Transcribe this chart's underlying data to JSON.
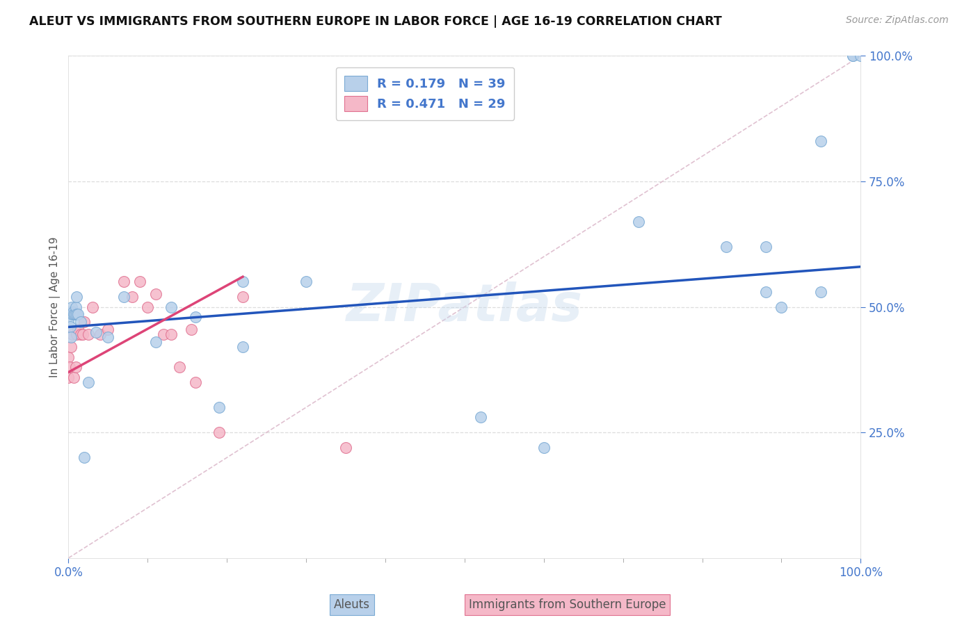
{
  "title": "ALEUT VS IMMIGRANTS FROM SOUTHERN EUROPE IN LABOR FORCE | AGE 16-19 CORRELATION CHART",
  "source": "Source: ZipAtlas.com",
  "ylabel": "In Labor Force | Age 16-19",
  "watermark": "ZIPatlas",
  "aleut_R": 0.179,
  "aleut_N": 39,
  "immig_R": 0.471,
  "immig_N": 29,
  "aleut_color": "#b8d0ea",
  "aleut_edge_color": "#7aaad4",
  "immig_color": "#f5b8c8",
  "immig_edge_color": "#e07090",
  "aleut_line_color": "#2255bb",
  "immig_line_color": "#dd4477",
  "diagonal_color": "#ddbbcc",
  "background_color": "#ffffff",
  "grid_color": "#dddddd",
  "title_color": "#111111",
  "axis_tick_color": "#4477cc",
  "watermark_color": "#c5d8ec",
  "marker_size": 130,
  "xlim": [
    0.0,
    1.0
  ],
  "ylim": [
    0.0,
    1.0
  ],
  "aleuts_x": [
    0.0,
    0.0,
    0.001,
    0.002,
    0.003,
    0.004,
    0.005,
    0.006,
    0.007,
    0.008,
    0.009,
    0.01,
    0.01,
    0.012,
    0.015,
    0.02,
    0.025,
    0.035,
    0.05,
    0.07,
    0.11,
    0.13,
    0.16,
    0.19,
    0.22,
    0.22,
    0.3,
    0.52,
    0.6,
    0.72,
    0.83,
    0.88,
    0.88,
    0.9,
    0.95,
    0.95,
    0.99,
    0.99,
    1.0
  ],
  "aleuts_y": [
    0.485,
    0.47,
    0.49,
    0.46,
    0.44,
    0.5,
    0.485,
    0.49,
    0.485,
    0.485,
    0.5,
    0.485,
    0.52,
    0.485,
    0.47,
    0.2,
    0.35,
    0.45,
    0.44,
    0.52,
    0.43,
    0.5,
    0.48,
    0.3,
    0.55,
    0.42,
    0.55,
    0.28,
    0.22,
    0.67,
    0.62,
    0.62,
    0.53,
    0.5,
    0.83,
    0.53,
    1.0,
    1.0,
    1.0
  ],
  "immig_x": [
    0.0,
    0.0,
    0.001,
    0.003,
    0.005,
    0.007,
    0.009,
    0.01,
    0.012,
    0.015,
    0.018,
    0.02,
    0.025,
    0.03,
    0.04,
    0.05,
    0.07,
    0.08,
    0.09,
    0.1,
    0.11,
    0.12,
    0.13,
    0.14,
    0.155,
    0.16,
    0.19,
    0.22,
    0.35
  ],
  "immig_y": [
    0.36,
    0.4,
    0.38,
    0.42,
    0.445,
    0.36,
    0.38,
    0.445,
    0.455,
    0.445,
    0.445,
    0.47,
    0.445,
    0.5,
    0.445,
    0.455,
    0.55,
    0.52,
    0.55,
    0.5,
    0.525,
    0.445,
    0.445,
    0.38,
    0.455,
    0.35,
    0.25,
    0.52,
    0.22
  ]
}
